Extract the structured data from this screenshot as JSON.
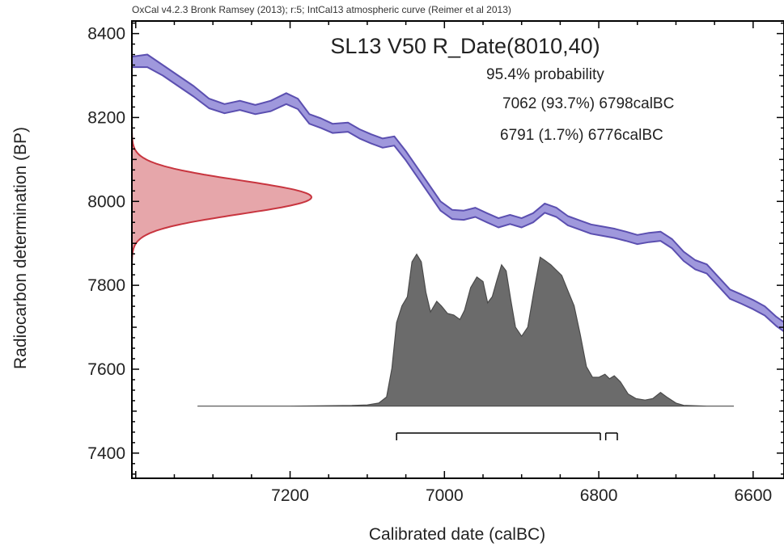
{
  "chart_data": {
    "type": "area",
    "header_note": "OxCal v4.2.3 Bronk Ramsey (2013); r:5; IntCal13 atmospheric curve (Reimer et al 2013)",
    "title": "SL13 V50 R_Date(8010,40)",
    "xlabel": "Calibrated date (calBC)",
    "ylabel": "Radiocarbon determination (BP)",
    "xlim": [
      7405,
      6560
    ],
    "ylim": [
      7340,
      8430
    ],
    "x_ticks": [
      7200,
      7000,
      6800,
      6600
    ],
    "y_ticks": [
      7400,
      7600,
      7800,
      8000,
      8200,
      8400
    ],
    "probability_label": "95.4% probability",
    "ranges": [
      {
        "label": "7062 (93.7%) 6798calBC",
        "from": 7062,
        "to": 6798
      },
      {
        "label": "6791 (1.7%) 6776calBC",
        "from": 6791,
        "to": 6776
      }
    ],
    "radiocarbon_date": {
      "mean": 8010,
      "error": 40,
      "color": "#c8353f",
      "fill": "#e6a6aa"
    },
    "calibration_curve": {
      "name": "IntCal13",
      "color": "#5b4fb0",
      "fill": "#9f98dc",
      "points": [
        [
          7405,
          8345,
          8320
        ],
        [
          7385,
          8350,
          8320
        ],
        [
          7365,
          8325,
          8300
        ],
        [
          7345,
          8300,
          8275
        ],
        [
          7325,
          8275,
          8250
        ],
        [
          7305,
          8245,
          8222
        ],
        [
          7285,
          8232,
          8210
        ],
        [
          7265,
          8240,
          8218
        ],
        [
          7245,
          8230,
          8208
        ],
        [
          7225,
          8240,
          8215
        ],
        [
          7205,
          8258,
          8232
        ],
        [
          7190,
          8245,
          8220
        ],
        [
          7175,
          8208,
          8185
        ],
        [
          7160,
          8198,
          8175
        ],
        [
          7145,
          8185,
          8163
        ],
        [
          7125,
          8188,
          8166
        ],
        [
          7110,
          8172,
          8150
        ],
        [
          7095,
          8160,
          8138
        ],
        [
          7080,
          8150,
          8128
        ],
        [
          7065,
          8155,
          8133
        ],
        [
          7050,
          8120,
          8098
        ],
        [
          7035,
          8080,
          8058
        ],
        [
          7020,
          8040,
          8018
        ],
        [
          7005,
          8000,
          7978
        ],
        [
          6990,
          7980,
          7958
        ],
        [
          6975,
          7978,
          7956
        ],
        [
          6960,
          7985,
          7963
        ],
        [
          6945,
          7972,
          7950
        ],
        [
          6930,
          7960,
          7938
        ],
        [
          6915,
          7968,
          7946
        ],
        [
          6900,
          7960,
          7938
        ],
        [
          6885,
          7972,
          7950
        ],
        [
          6870,
          7995,
          7973
        ],
        [
          6855,
          7985,
          7963
        ],
        [
          6840,
          7965,
          7943
        ],
        [
          6825,
          7955,
          7933
        ],
        [
          6810,
          7945,
          7923
        ],
        [
          6795,
          7940,
          7918
        ],
        [
          6780,
          7935,
          7913
        ],
        [
          6765,
          7928,
          7906
        ],
        [
          6750,
          7920,
          7898
        ],
        [
          6735,
          7925,
          7903
        ],
        [
          6720,
          7928,
          7906
        ],
        [
          6705,
          7910,
          7888
        ],
        [
          6690,
          7880,
          7858
        ],
        [
          6675,
          7860,
          7838
        ],
        [
          6660,
          7850,
          7828
        ],
        [
          6645,
          7820,
          7798
        ],
        [
          6630,
          7790,
          7768
        ],
        [
          6615,
          7778,
          7756
        ],
        [
          6600,
          7765,
          7743
        ],
        [
          6585,
          7750,
          7728
        ],
        [
          6570,
          7725,
          7703
        ],
        [
          6560,
          7712,
          7690
        ]
      ]
    },
    "posterior_distribution": {
      "color": "#4a4a4a",
      "fill": "#6b6b6b",
      "baseline": 7512,
      "points": [
        [
          7320,
          0
        ],
        [
          7200,
          0
        ],
        [
          7120,
          0.004
        ],
        [
          7100,
          0.008
        ],
        [
          7085,
          0.02
        ],
        [
          7075,
          0.06
        ],
        [
          7068,
          0.25
        ],
        [
          7062,
          0.55
        ],
        [
          7055,
          0.66
        ],
        [
          7048,
          0.72
        ],
        [
          7042,
          0.95
        ],
        [
          7036,
          1.0
        ],
        [
          7030,
          0.95
        ],
        [
          7024,
          0.75
        ],
        [
          7018,
          0.62
        ],
        [
          7010,
          0.69
        ],
        [
          7004,
          0.66
        ],
        [
          6996,
          0.61
        ],
        [
          6988,
          0.6
        ],
        [
          6980,
          0.57
        ],
        [
          6974,
          0.63
        ],
        [
          6966,
          0.78
        ],
        [
          6958,
          0.85
        ],
        [
          6950,
          0.82
        ],
        [
          6944,
          0.68
        ],
        [
          6938,
          0.72
        ],
        [
          6932,
          0.83
        ],
        [
          6926,
          0.93
        ],
        [
          6920,
          0.89
        ],
        [
          6914,
          0.7
        ],
        [
          6908,
          0.52
        ],
        [
          6900,
          0.46
        ],
        [
          6892,
          0.52
        ],
        [
          6884,
          0.76
        ],
        [
          6876,
          0.98
        ],
        [
          6870,
          0.96
        ],
        [
          6862,
          0.93
        ],
        [
          6856,
          0.9
        ],
        [
          6848,
          0.86
        ],
        [
          6840,
          0.76
        ],
        [
          6832,
          0.66
        ],
        [
          6824,
          0.47
        ],
        [
          6816,
          0.26
        ],
        [
          6808,
          0.19
        ],
        [
          6800,
          0.19
        ],
        [
          6792,
          0.21
        ],
        [
          6786,
          0.18
        ],
        [
          6780,
          0.2
        ],
        [
          6772,
          0.16
        ],
        [
          6762,
          0.08
        ],
        [
          6752,
          0.05
        ],
        [
          6740,
          0.04
        ],
        [
          6730,
          0.05
        ],
        [
          6720,
          0.09
        ],
        [
          6712,
          0.06
        ],
        [
          6700,
          0.02
        ],
        [
          6690,
          0.005
        ],
        [
          6660,
          0
        ],
        [
          6625,
          0
        ]
      ]
    }
  }
}
